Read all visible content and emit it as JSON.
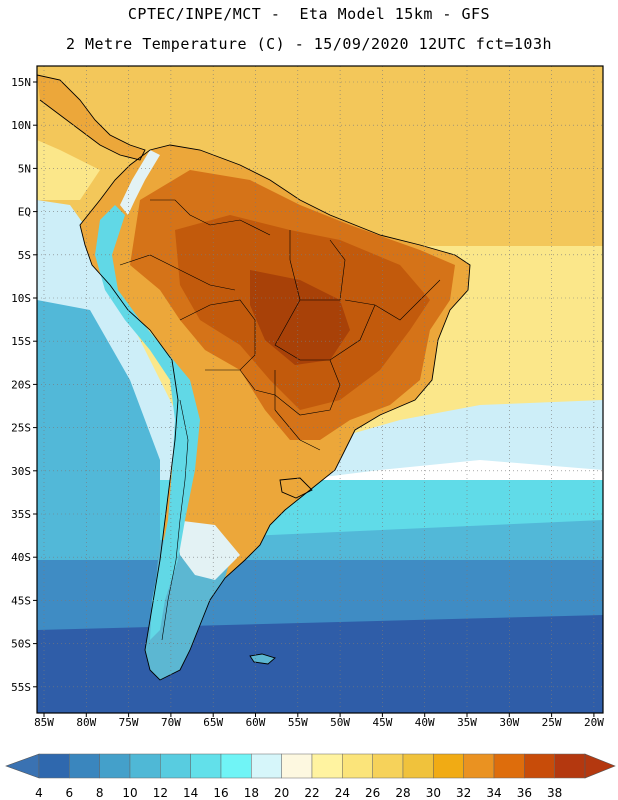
{
  "header": {
    "line1": "CPTEC/INPE/MCT -  Eta Model 15km - GFS",
    "line2": "2 Metre Temperature (C) - 15/09/2020 12UTC fct=103h"
  },
  "map": {
    "lat_ticks": [
      "15N",
      "10N",
      "5N",
      "EQ",
      "5S",
      "10S",
      "15S",
      "20S",
      "25S",
      "30S",
      "35S",
      "40S",
      "45S",
      "50S",
      "55S"
    ],
    "lon_ticks": [
      "85W",
      "80W",
      "75W",
      "70W",
      "65W",
      "60W",
      "55W",
      "50W",
      "45W",
      "40W",
      "35W",
      "30W",
      "25W",
      "20W"
    ]
  },
  "colorbar": {
    "labels": [
      "4",
      "6",
      "8",
      "10",
      "12",
      "14",
      "16",
      "18",
      "20",
      "22",
      "24",
      "26",
      "28",
      "30",
      "32",
      "34",
      "36",
      "38"
    ],
    "low_color": "#3a72b2",
    "high_color": "#b4380f",
    "colors": [
      "#2f68ae",
      "#3a86be",
      "#44a0ca",
      "#4fb8d6",
      "#58cce0",
      "#62e0ea",
      "#70f4f6",
      "#d6f6fa",
      "#fdf8e0",
      "#fff3a0",
      "#fbe47a",
      "#f6d25a",
      "#f0c23c",
      "#f1ab14",
      "#ea9221",
      "#de6d0c",
      "#c84c09",
      "#b4380f"
    ]
  },
  "palette": {
    "ocean_deep": "#2f5da8",
    "ocean_mid": "#3f8cc4",
    "ocean_light": "#52b8d8",
    "ocean_cyan": "#60dbe8",
    "ocean_pale": "#cdeef8",
    "atl_yellow": "#fbe78a",
    "atl_tropic": "#f3c75a",
    "land_warm": "#eca73a",
    "land_hot": "#d57318",
    "land_hotter": "#c25a0c",
    "land_hottest": "#a84108",
    "andes_cold": "#61d8e6",
    "andes_pale": "#e3f2f4",
    "south_land": "#5cb7d2"
  }
}
